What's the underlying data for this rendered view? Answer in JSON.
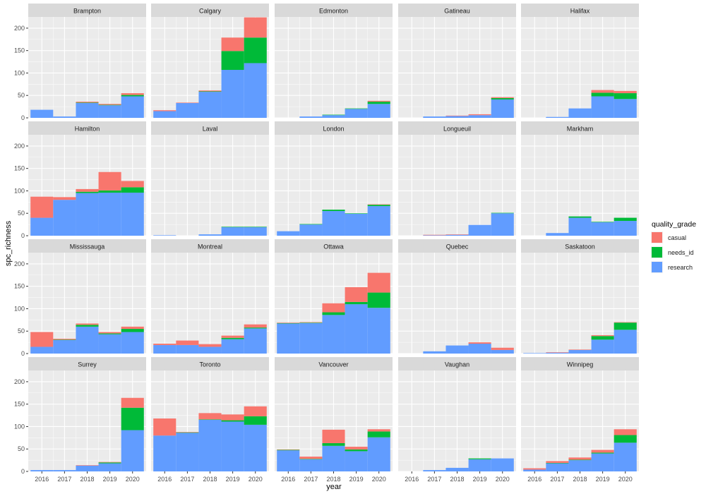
{
  "chart_data": {
    "type": "bar",
    "layout": "facet_wrap",
    "xlabel": "year",
    "ylabel": "spc_richness",
    "x_ticks": [
      2016,
      2017,
      2018,
      2019,
      2020
    ],
    "y_ticks": [
      0,
      50,
      100,
      150,
      200
    ],
    "ylim": [
      0,
      225
    ],
    "xlim": [
      2015.4,
      2020.6
    ],
    "stacking": [
      "research",
      "needs_id",
      "casual"
    ],
    "legend": {
      "title": "quality_grade",
      "position": "right",
      "items": [
        {
          "key": "casual",
          "label": "casual",
          "color": "#F8766D"
        },
        {
          "key": "needs_id",
          "label": "needs_id",
          "color": "#00BA38"
        },
        {
          "key": "research",
          "label": "research",
          "color": "#619CFF"
        }
      ]
    },
    "panels": [
      {
        "city": "Brampton",
        "years": [
          2016,
          2017,
          2018,
          2019,
          2020
        ],
        "research": [
          18,
          3,
          33,
          28,
          48
        ],
        "needs_id": [
          0,
          0,
          1,
          1,
          3
        ],
        "casual": [
          0,
          0,
          2,
          2,
          4
        ]
      },
      {
        "city": "Calgary",
        "years": [
          2016,
          2017,
          2018,
          2019,
          2020
        ],
        "research": [
          15,
          33,
          58,
          107,
          122
        ],
        "needs_id": [
          0,
          0,
          1,
          42,
          57
        ],
        "casual": [
          2,
          1,
          2,
          30,
          45
        ]
      },
      {
        "city": "Edmonton",
        "years": [
          2017,
          2018,
          2019,
          2020
        ],
        "research": [
          3,
          6,
          20,
          31
        ],
        "needs_id": [
          0,
          1,
          1,
          5
        ],
        "casual": [
          0,
          0,
          0,
          2
        ]
      },
      {
        "city": "Gatineau",
        "years": [
          2017,
          2018,
          2019,
          2020
        ],
        "research": [
          3,
          4,
          6,
          41
        ],
        "needs_id": [
          0,
          0,
          0,
          3
        ],
        "casual": [
          0,
          1,
          2,
          2
        ]
      },
      {
        "city": "Halifax",
        "years": [
          2017,
          2018,
          2019,
          2020
        ],
        "research": [
          2,
          21,
          48,
          42
        ],
        "needs_id": [
          0,
          0,
          8,
          13
        ],
        "casual": [
          0,
          0,
          6,
          5
        ]
      },
      {
        "city": "Hamilton",
        "years": [
          2016,
          2017,
          2018,
          2019,
          2020
        ],
        "research": [
          40,
          80,
          95,
          96,
          96
        ],
        "needs_id": [
          0,
          0,
          3,
          5,
          12
        ],
        "casual": [
          47,
          6,
          6,
          41,
          14
        ]
      },
      {
        "city": "Laval",
        "years": [
          2016,
          2018,
          2019,
          2020
        ],
        "research": [
          1,
          3,
          19,
          19
        ],
        "needs_id": [
          0,
          0,
          1,
          1
        ],
        "casual": [
          0,
          0,
          0,
          0
        ]
      },
      {
        "city": "London",
        "years": [
          2016,
          2017,
          2018,
          2019,
          2020
        ],
        "research": [
          10,
          25,
          55,
          49,
          66
        ],
        "needs_id": [
          0,
          1,
          3,
          1,
          3
        ],
        "casual": [
          0,
          0,
          0,
          0,
          1
        ]
      },
      {
        "city": "Longueuil",
        "years": [
          2017,
          2018,
          2019,
          2020
        ],
        "research": [
          1,
          2,
          24,
          50
        ],
        "needs_id": [
          0,
          0,
          0,
          1
        ],
        "casual": [
          1,
          1,
          0,
          0
        ]
      },
      {
        "city": "Markham",
        "years": [
          2017,
          2018,
          2019,
          2020
        ],
        "research": [
          6,
          40,
          30,
          33
        ],
        "needs_id": [
          0,
          3,
          1,
          7
        ],
        "casual": [
          0,
          0,
          0,
          0
        ]
      },
      {
        "city": "Mississauga",
        "years": [
          2016,
          2017,
          2018,
          2019,
          2020
        ],
        "research": [
          15,
          30,
          60,
          43,
          48
        ],
        "needs_id": [
          0,
          1,
          4,
          2,
          7
        ],
        "casual": [
          33,
          2,
          3,
          3,
          5
        ]
      },
      {
        "city": "Montreal",
        "years": [
          2016,
          2017,
          2018,
          2019,
          2020
        ],
        "research": [
          19,
          19,
          15,
          32,
          56
        ],
        "needs_id": [
          0,
          0,
          0,
          3,
          2
        ],
        "casual": [
          3,
          10,
          6,
          5,
          7
        ]
      },
      {
        "city": "Ottawa",
        "years": [
          2016,
          2017,
          2018,
          2019,
          2020
        ],
        "research": [
          67,
          68,
          86,
          110,
          102
        ],
        "needs_id": [
          1,
          1,
          6,
          5,
          34
        ],
        "casual": [
          1,
          1,
          20,
          33,
          44
        ]
      },
      {
        "city": "Quebec",
        "years": [
          2017,
          2018,
          2019,
          2020
        ],
        "research": [
          5,
          18,
          22,
          8
        ],
        "needs_id": [
          0,
          0,
          0,
          0
        ],
        "casual": [
          0,
          0,
          3,
          5
        ]
      },
      {
        "city": "Saskatoon",
        "years": [
          2016,
          2017,
          2018,
          2019,
          2020
        ],
        "research": [
          1,
          2,
          8,
          31,
          53
        ],
        "needs_id": [
          0,
          0,
          0,
          8,
          16
        ],
        "casual": [
          0,
          1,
          1,
          2,
          1
        ]
      },
      {
        "city": "Surrey",
        "years": [
          2016,
          2017,
          2018,
          2019,
          2020
        ],
        "research": [
          3,
          3,
          13,
          18,
          92
        ],
        "needs_id": [
          0,
          0,
          0,
          2,
          50
        ],
        "casual": [
          0,
          0,
          1,
          1,
          22
        ]
      },
      {
        "city": "Toronto",
        "years": [
          2016,
          2017,
          2018,
          2019,
          2020
        ],
        "research": [
          80,
          86,
          115,
          111,
          104
        ],
        "needs_id": [
          0,
          1,
          1,
          3,
          19
        ],
        "casual": [
          38,
          1,
          14,
          13,
          22
        ]
      },
      {
        "city": "Vancouver",
        "years": [
          2016,
          2017,
          2018,
          2019,
          2020
        ],
        "research": [
          47,
          27,
          57,
          45,
          76
        ],
        "needs_id": [
          1,
          1,
          6,
          4,
          13
        ],
        "casual": [
          1,
          5,
          30,
          6,
          5
        ]
      },
      {
        "city": "Vaughan",
        "years": [
          2017,
          2018,
          2019,
          2020
        ],
        "research": [
          3,
          8,
          27,
          29
        ],
        "needs_id": [
          0,
          0,
          2,
          0
        ],
        "casual": [
          0,
          0,
          0,
          0
        ]
      },
      {
        "city": "Winnipeg",
        "years": [
          2016,
          2017,
          2018,
          2019,
          2020
        ],
        "research": [
          4,
          18,
          25,
          40,
          64
        ],
        "needs_id": [
          0,
          1,
          1,
          2,
          17
        ],
        "casual": [
          3,
          4,
          5,
          6,
          13
        ]
      }
    ]
  }
}
